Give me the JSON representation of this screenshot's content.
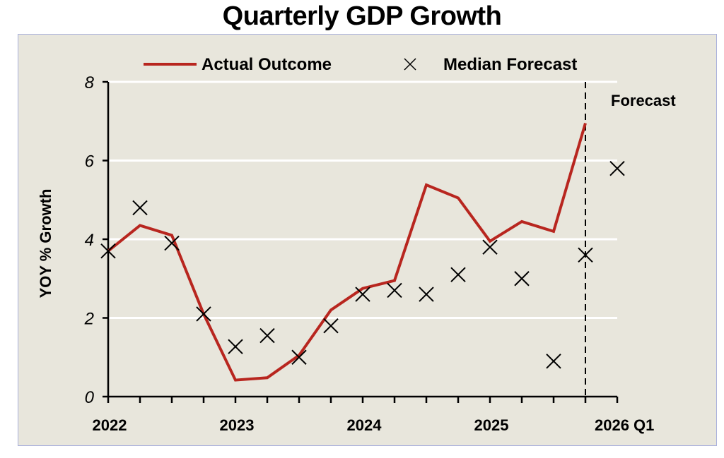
{
  "chart_data": {
    "type": "line",
    "title": "Quarterly GDP Growth",
    "xlabel": "",
    "ylabel": "YOY % Growth",
    "ylim": [
      0,
      8
    ],
    "yticks": [
      "0",
      "2",
      "4",
      "6",
      "8"
    ],
    "grid": true,
    "legend_position": "top",
    "x": [
      "2022 Q1",
      "2022 Q2",
      "2022 Q3",
      "2022 Q4",
      "2023 Q1",
      "2023 Q2",
      "2023 Q3",
      "2023 Q4",
      "2024 Q1",
      "2024 Q2",
      "2024 Q3",
      "2024 Q4",
      "2025 Q1",
      "2025 Q2",
      "2025 Q3",
      "2025 Q4",
      "2026 Q1"
    ],
    "xtick_labels": [
      {
        "index": 0,
        "label": "2022"
      },
      {
        "index": 4,
        "label": "2023"
      },
      {
        "index": 8,
        "label": "2024"
      },
      {
        "index": 12,
        "label": "2025"
      },
      {
        "index": 16,
        "label": "2026 Q1"
      }
    ],
    "series": [
      {
        "name": "Actual Outcome",
        "type": "line",
        "color": "#b8261f",
        "values": [
          3.7,
          4.35,
          4.1,
          2.1,
          0.42,
          0.48,
          1.05,
          2.2,
          2.75,
          2.95,
          5.38,
          5.05,
          3.95,
          4.45,
          4.2,
          6.95,
          null
        ]
      },
      {
        "name": "Median Forecast",
        "type": "scatter",
        "marker": "x",
        "color": "#000000",
        "values": [
          3.7,
          4.8,
          3.9,
          2.1,
          1.27,
          1.55,
          1.0,
          1.8,
          2.6,
          2.7,
          2.6,
          3.1,
          3.8,
          3.0,
          0.9,
          3.6,
          5.8
        ]
      }
    ],
    "annotations": [
      {
        "text": "Forecast",
        "type": "dashed-vertical-line",
        "at_index": 15
      }
    ]
  }
}
